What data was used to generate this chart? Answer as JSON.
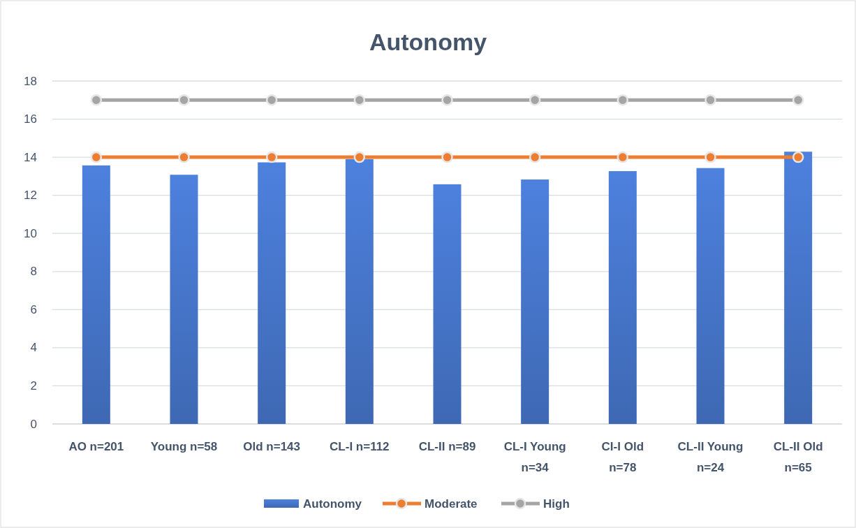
{
  "chart_data": {
    "type": "bar",
    "title": "Autonomy",
    "categories": [
      "AO n=201",
      "Young n=58",
      "Old n=143",
      "CL-I  n=112",
      "CL-II n=89",
      "CL-I Young n=34",
      "CI-I Old n=78",
      "CL-II Young n=24",
      "CL-II Old n=65"
    ],
    "series": [
      {
        "name": "Autonomy",
        "color": "#4472c4",
        "values": [
          13.57,
          13.08,
          13.73,
          13.9,
          12.58,
          12.83,
          13.27,
          13.43,
          14.29
        ]
      },
      {
        "name": "Moderate",
        "type": "line",
        "color": "#ed7d31",
        "values": [
          14,
          14,
          14,
          14,
          14,
          14,
          14,
          14,
          14
        ]
      },
      {
        "name": "High",
        "type": "line",
        "color": "#a5a5a5",
        "values": [
          17,
          17,
          17,
          17,
          17,
          17,
          17,
          17,
          17
        ]
      }
    ],
    "ylim": [
      0,
      18
    ],
    "yticks": [
      0,
      2,
      4,
      6,
      8,
      10,
      12,
      14,
      16,
      18
    ],
    "grid": "y",
    "legend": "bottom",
    "marker": "circle"
  }
}
